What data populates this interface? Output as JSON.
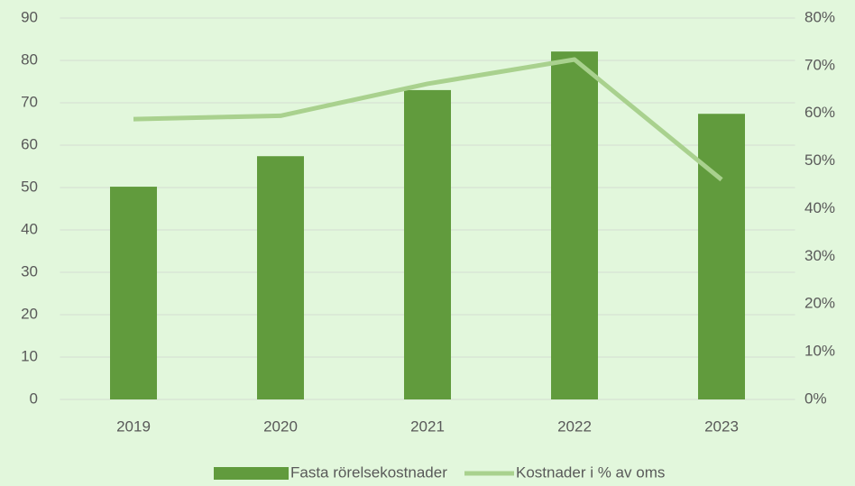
{
  "chart_data": {
    "type": "bar",
    "categories": [
      "2019",
      "2020",
      "2021",
      "2022",
      "2023"
    ],
    "series": [
      {
        "name": "Fasta rörelsekostnader",
        "type": "bar",
        "color": "#619b3d",
        "values": [
          50.2,
          57.4,
          73,
          82.1,
          67.4
        ]
      },
      {
        "name": "Kostnader i % av oms",
        "type": "line",
        "axis": "y2",
        "color": "#a9d18e",
        "values": [
          58.8,
          59.5,
          66.2,
          71.3,
          46.1
        ]
      }
    ],
    "ylim": [
      0,
      90
    ],
    "yticks": [
      0,
      10,
      20,
      30,
      40,
      50,
      60,
      70,
      80,
      90
    ],
    "y2lim": [
      0,
      80
    ],
    "y2ticks": [
      {
        "value": 0,
        "label": "0%"
      },
      {
        "value": 10,
        "label": "10%"
      },
      {
        "value": 20,
        "label": "20%"
      },
      {
        "value": 30,
        "label": "30%"
      },
      {
        "value": 40,
        "label": "40%"
      },
      {
        "value": 50,
        "label": "50%"
      },
      {
        "value": 60,
        "label": "60%"
      },
      {
        "value": 70,
        "label": "70%"
      },
      {
        "value": 80,
        "label": "80%"
      }
    ],
    "grid": true,
    "legend": "bottom"
  }
}
